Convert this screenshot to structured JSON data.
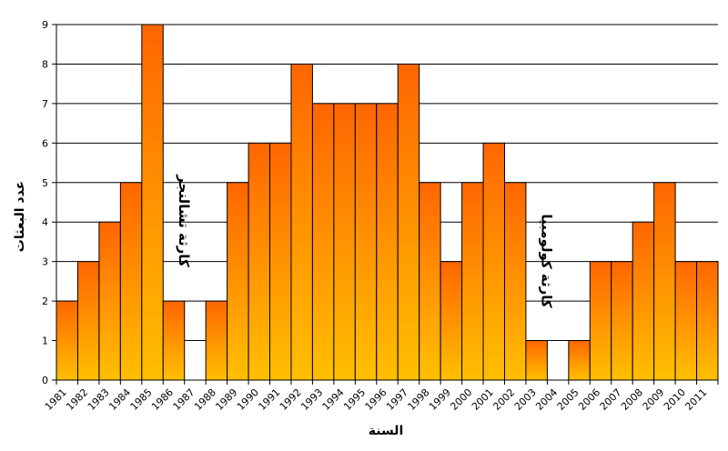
{
  "chart_data": {
    "type": "bar",
    "title": "",
    "xlabel": "السنة",
    "ylabel": "عدد البعثات",
    "categories": [
      "1981",
      "1982",
      "1983",
      "1984",
      "1985",
      "1986",
      "1987",
      "1988",
      "1989",
      "1990",
      "1991",
      "1992",
      "1993",
      "1994",
      "1995",
      "1996",
      "1997",
      "1998",
      "1999",
      "2000",
      "2001",
      "2002",
      "2003",
      "2004",
      "2005",
      "2006",
      "2007",
      "2008",
      "2009",
      "2010",
      "2011"
    ],
    "values": [
      2,
      3,
      4,
      5,
      9,
      2,
      0,
      2,
      5,
      6,
      6,
      8,
      7,
      7,
      7,
      7,
      8,
      5,
      3,
      5,
      6,
      5,
      1,
      0,
      1,
      3,
      3,
      4,
      5,
      3,
      3
    ],
    "ylim": [
      0,
      9
    ],
    "yticks": [
      "0",
      "1",
      "2",
      "3",
      "4",
      "5",
      "6",
      "7",
      "8",
      "9"
    ],
    "grid": true,
    "bar_gradient": {
      "top": "#ff6600",
      "bottom": "#ffbf00"
    },
    "annotations": [
      {
        "text": "كارثة تشالنجر",
        "category": "1986"
      },
      {
        "text": "كارثة كولومبيا",
        "category": "2003"
      }
    ]
  }
}
